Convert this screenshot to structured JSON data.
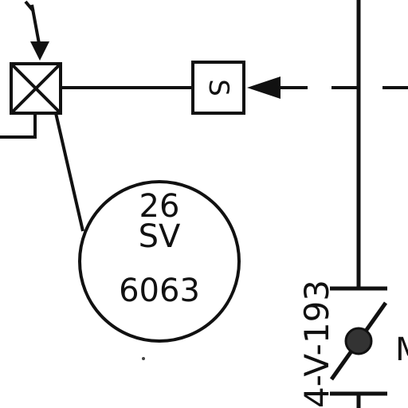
{
  "drawing": {
    "valve_actuator": {
      "symbol": "S"
    },
    "instrument_bubble": {
      "line1": "26",
      "line2": "SV",
      "line3": "6063"
    },
    "line_label": {
      "text": "4-V-193"
    },
    "partial_label": {
      "text": "M"
    }
  }
}
